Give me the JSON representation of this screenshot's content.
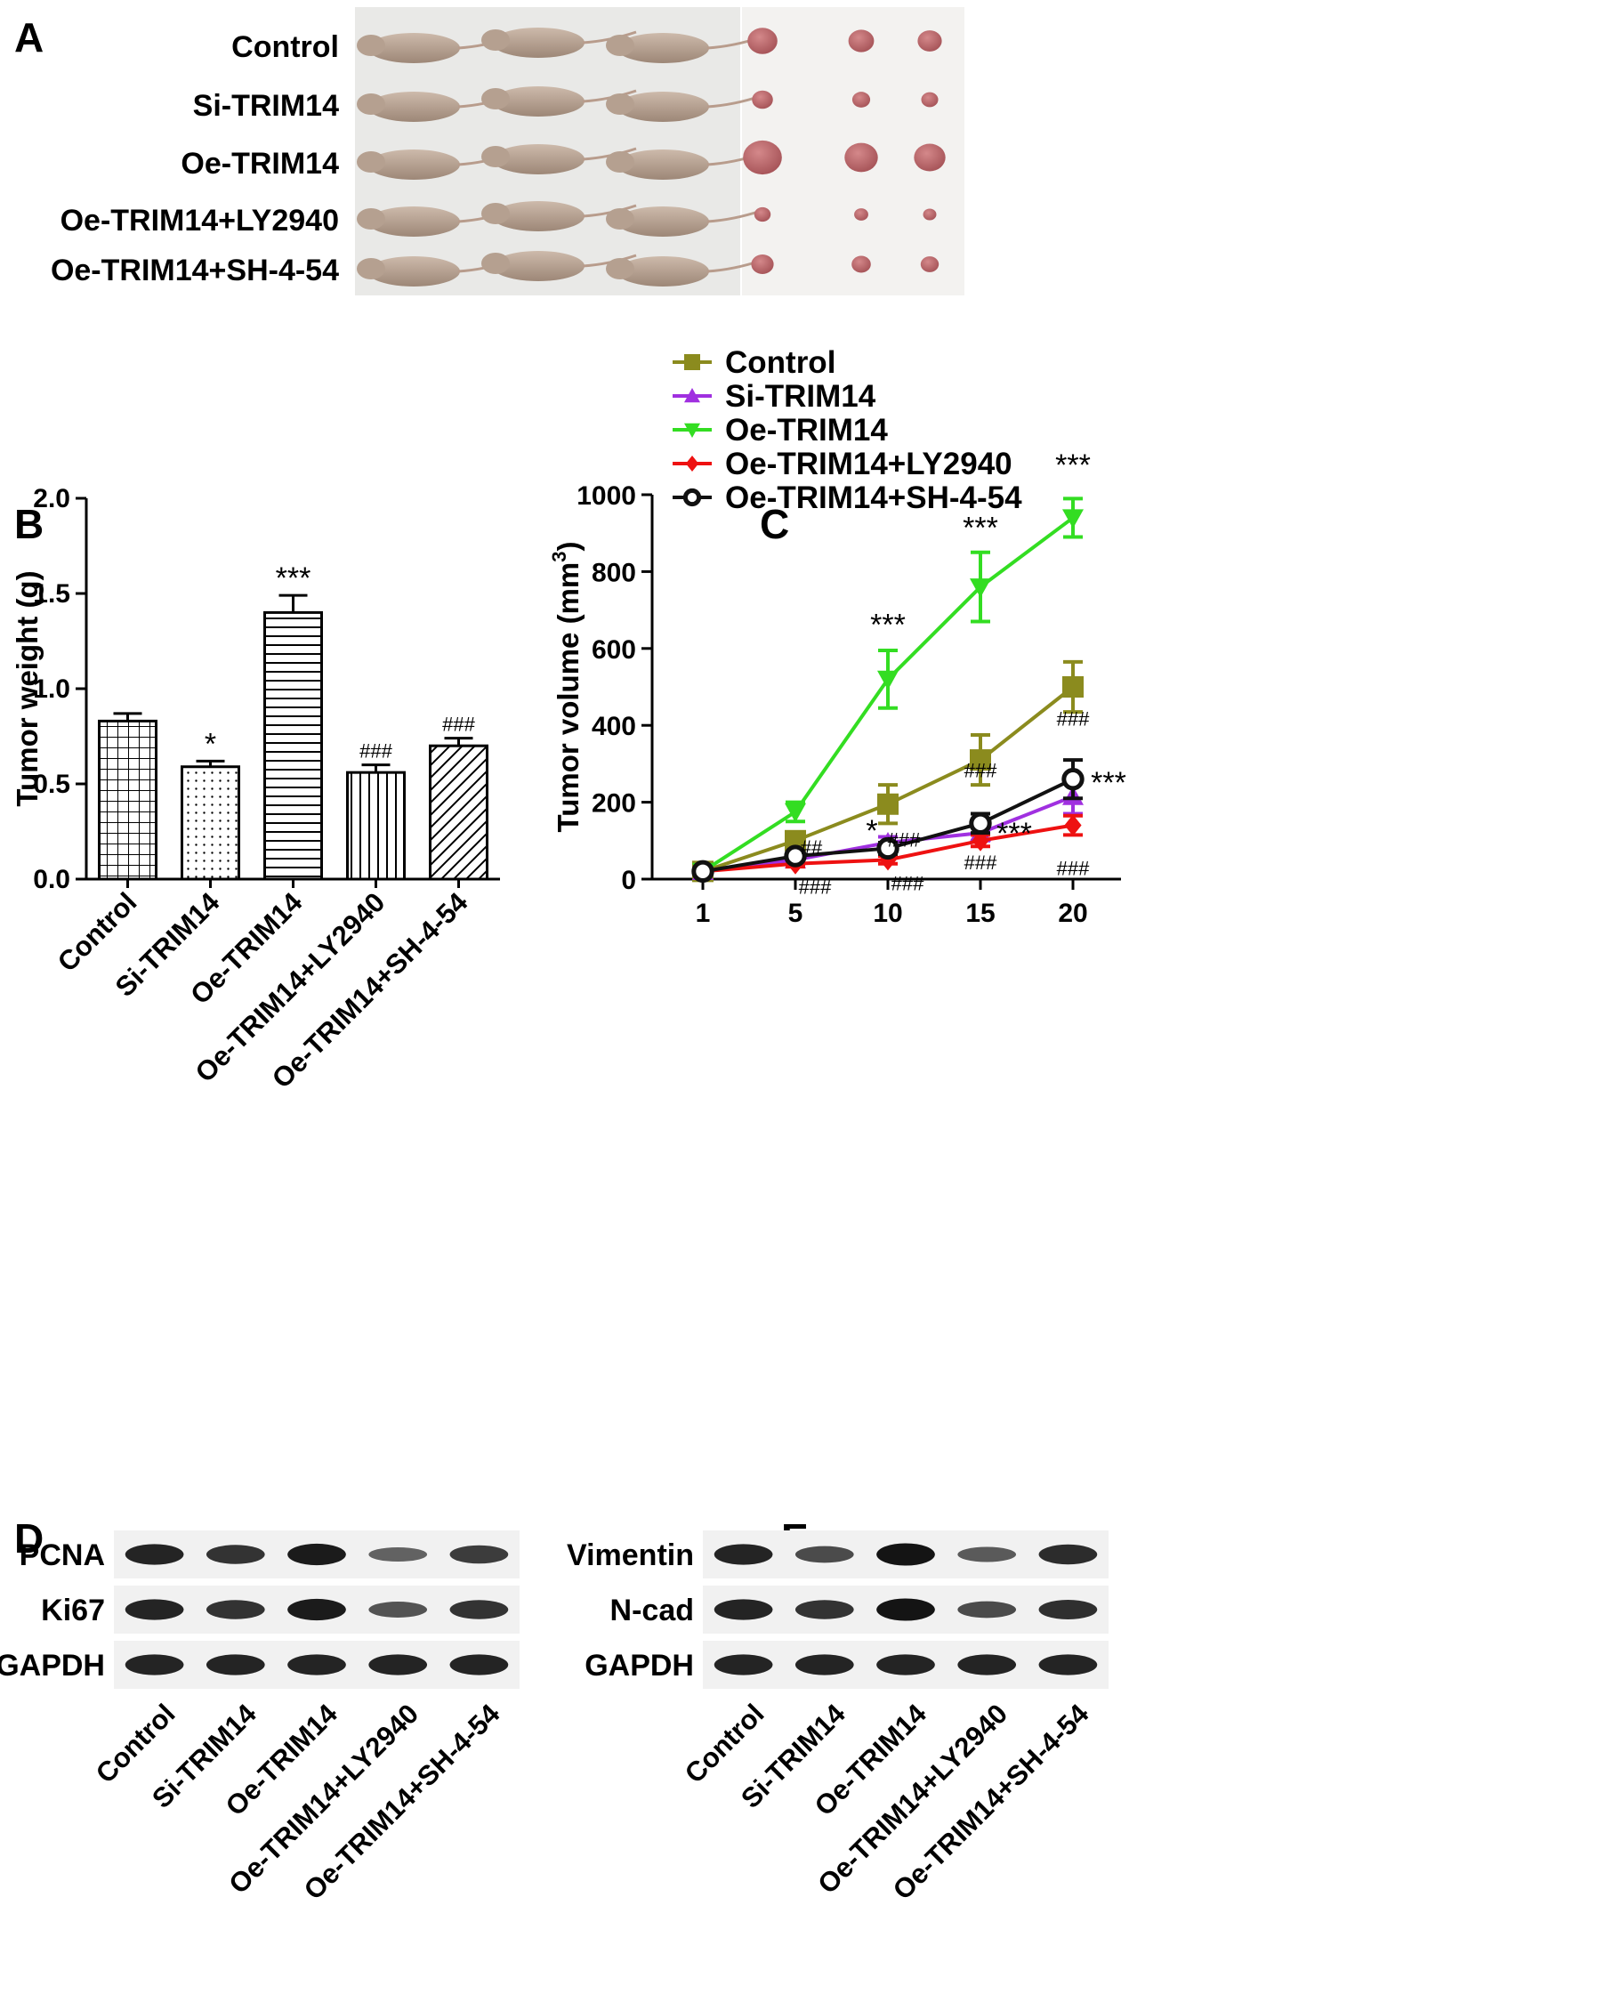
{
  "panels": {
    "A": "A",
    "B": "B",
    "C": "C",
    "D": "D",
    "E": "E"
  },
  "groups": [
    "Control",
    "Si-TRIM14",
    "Oe-TRIM14",
    "Oe-TRIM14+LY2940",
    "Oe-TRIM14+SH-4-54"
  ],
  "photo": {
    "background": "#e9e9e7",
    "mouse_color": "#bda999",
    "tumor_color": "#a8565a",
    "tumor_size": [
      1.0,
      0.7,
      1.3,
      0.55,
      0.75
    ]
  },
  "chart_data": [
    {
      "type": "bar",
      "panel": "B",
      "categories": [
        "Control",
        "Si-TRIM14",
        "Oe-TRIM14",
        "Oe-TRIM14+LY2940",
        "Oe-TRIM14+SH-4-54"
      ],
      "values": [
        0.83,
        0.59,
        1.4,
        0.56,
        0.7
      ],
      "errors": [
        0.04,
        0.03,
        0.09,
        0.04,
        0.04
      ],
      "annotations": [
        "",
        "*",
        "***",
        "###",
        "###"
      ],
      "ylabel": "Tumor weight (g)",
      "ylim": [
        0,
        2.0
      ],
      "yticks": [
        "0.0",
        "0.5",
        "1.0",
        "1.5",
        "2.0"
      ]
    },
    {
      "type": "line",
      "panel": "C",
      "x": [
        1,
        5,
        10,
        15,
        20
      ],
      "xticks": [
        "1",
        "5",
        "10",
        "15",
        "20"
      ],
      "ylabel": "Tumor volume (mm",
      "ylabel_sup": "3",
      "ylabel_close": ")",
      "ylim": [
        0,
        1000
      ],
      "yticks": [
        "0",
        "200",
        "400",
        "600",
        "800",
        "1000"
      ],
      "legend_position": "top-left",
      "series": [
        {
          "name": "Control",
          "color": "#8b8b1e",
          "marker": "square",
          "values": [
            20,
            100,
            195,
            310,
            500
          ],
          "errors": [
            0,
            15,
            50,
            65,
            65
          ]
        },
        {
          "name": "Si-TRIM14",
          "color": "#a030e0",
          "marker": "triangle-up",
          "values": [
            20,
            50,
            95,
            120,
            215
          ],
          "errors": [
            0,
            10,
            15,
            20,
            45
          ]
        },
        {
          "name": "Oe-TRIM14",
          "color": "#33dd22",
          "marker": "triangle-down",
          "values": [
            20,
            175,
            520,
            760,
            940
          ],
          "errors": [
            0,
            25,
            75,
            90,
            50
          ]
        },
        {
          "name": "Oe-TRIM14+LY2940",
          "color": "#ee1111",
          "marker": "diamond",
          "values": [
            20,
            40,
            50,
            100,
            140
          ],
          "errors": [
            0,
            8,
            10,
            15,
            25
          ]
        },
        {
          "name": "Oe-TRIM14+SH-4-54",
          "color": "#111111",
          "marker": "circle-open",
          "values": [
            20,
            60,
            80,
            145,
            260
          ],
          "errors": [
            0,
            10,
            15,
            25,
            50
          ]
        }
      ],
      "annotations": [
        {
          "x": 10,
          "y": 520,
          "text": "***"
        },
        {
          "x": 15,
          "y": 760,
          "text": "***"
        },
        {
          "x": 20,
          "y": 940,
          "text": "***"
        },
        {
          "x": 10,
          "y": 95,
          "text": "*"
        },
        {
          "x": 15,
          "y": 120,
          "text": "***"
        },
        {
          "x": 20,
          "y": 215,
          "text": "***"
        },
        {
          "x": 5,
          "y": 60,
          "text": "##"
        },
        {
          "x": 5,
          "y": 40,
          "text": "###"
        },
        {
          "x": 10,
          "y": 80,
          "text": "###"
        },
        {
          "x": 10,
          "y": 50,
          "text": "###"
        },
        {
          "x": 15,
          "y": 145,
          "text": "###"
        },
        {
          "x": 15,
          "y": 100,
          "text": "###"
        },
        {
          "x": 20,
          "y": 260,
          "text": "###"
        },
        {
          "x": 20,
          "y": 140,
          "text": "###"
        }
      ]
    }
  ],
  "blot_D": {
    "rows": [
      "PCNA",
      "Ki67",
      "GAPDH"
    ],
    "intensity": [
      [
        0.85,
        0.75,
        0.9,
        0.45,
        0.7
      ],
      [
        0.85,
        0.75,
        0.9,
        0.55,
        0.75
      ],
      [
        0.85,
        0.85,
        0.85,
        0.85,
        0.85
      ]
    ]
  },
  "blot_E": {
    "rows": [
      "Vimentin",
      "N-cad",
      "GAPDH"
    ],
    "intensity": [
      [
        0.85,
        0.6,
        0.95,
        0.5,
        0.8
      ],
      [
        0.85,
        0.75,
        0.95,
        0.6,
        0.78
      ],
      [
        0.85,
        0.85,
        0.85,
        0.85,
        0.85
      ]
    ]
  }
}
